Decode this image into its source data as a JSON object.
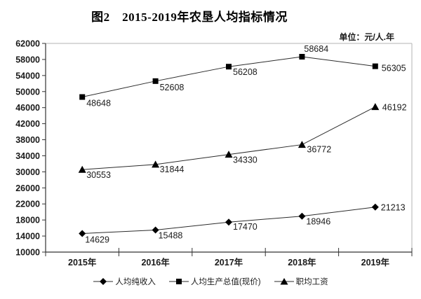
{
  "title": "图2　2015-2019年农垦人均指标情况",
  "unit_label": "单位：元/人.年",
  "colors": {
    "text": "#1a1a1a",
    "axis": "#333333",
    "border_light": "#b3b3b3",
    "series_line": "#2b2b2b",
    "marker": "#000000"
  },
  "chart_data": {
    "type": "line",
    "title": "图2　2015-2019年农垦人均指标情况",
    "unit": "单位：元/人.年",
    "categories": [
      "2015年",
      "2016年",
      "2017年",
      "2018年",
      "2019年"
    ],
    "series": [
      {
        "name": "人均纯收入",
        "marker": "diamond",
        "values": [
          14629,
          15488,
          17470,
          18946,
          21213
        ]
      },
      {
        "name": "人均生产总值(现价)",
        "marker": "square",
        "values": [
          48648,
          52608,
          56208,
          58684,
          56305
        ]
      },
      {
        "name": "职均工资",
        "marker": "triangle",
        "values": [
          30553,
          31844,
          34330,
          36772,
          46192
        ]
      }
    ],
    "ylim": [
      10000,
      62000
    ],
    "ytick_step": 4000,
    "grid": false,
    "data_labels": true,
    "legend_position": "bottom"
  }
}
